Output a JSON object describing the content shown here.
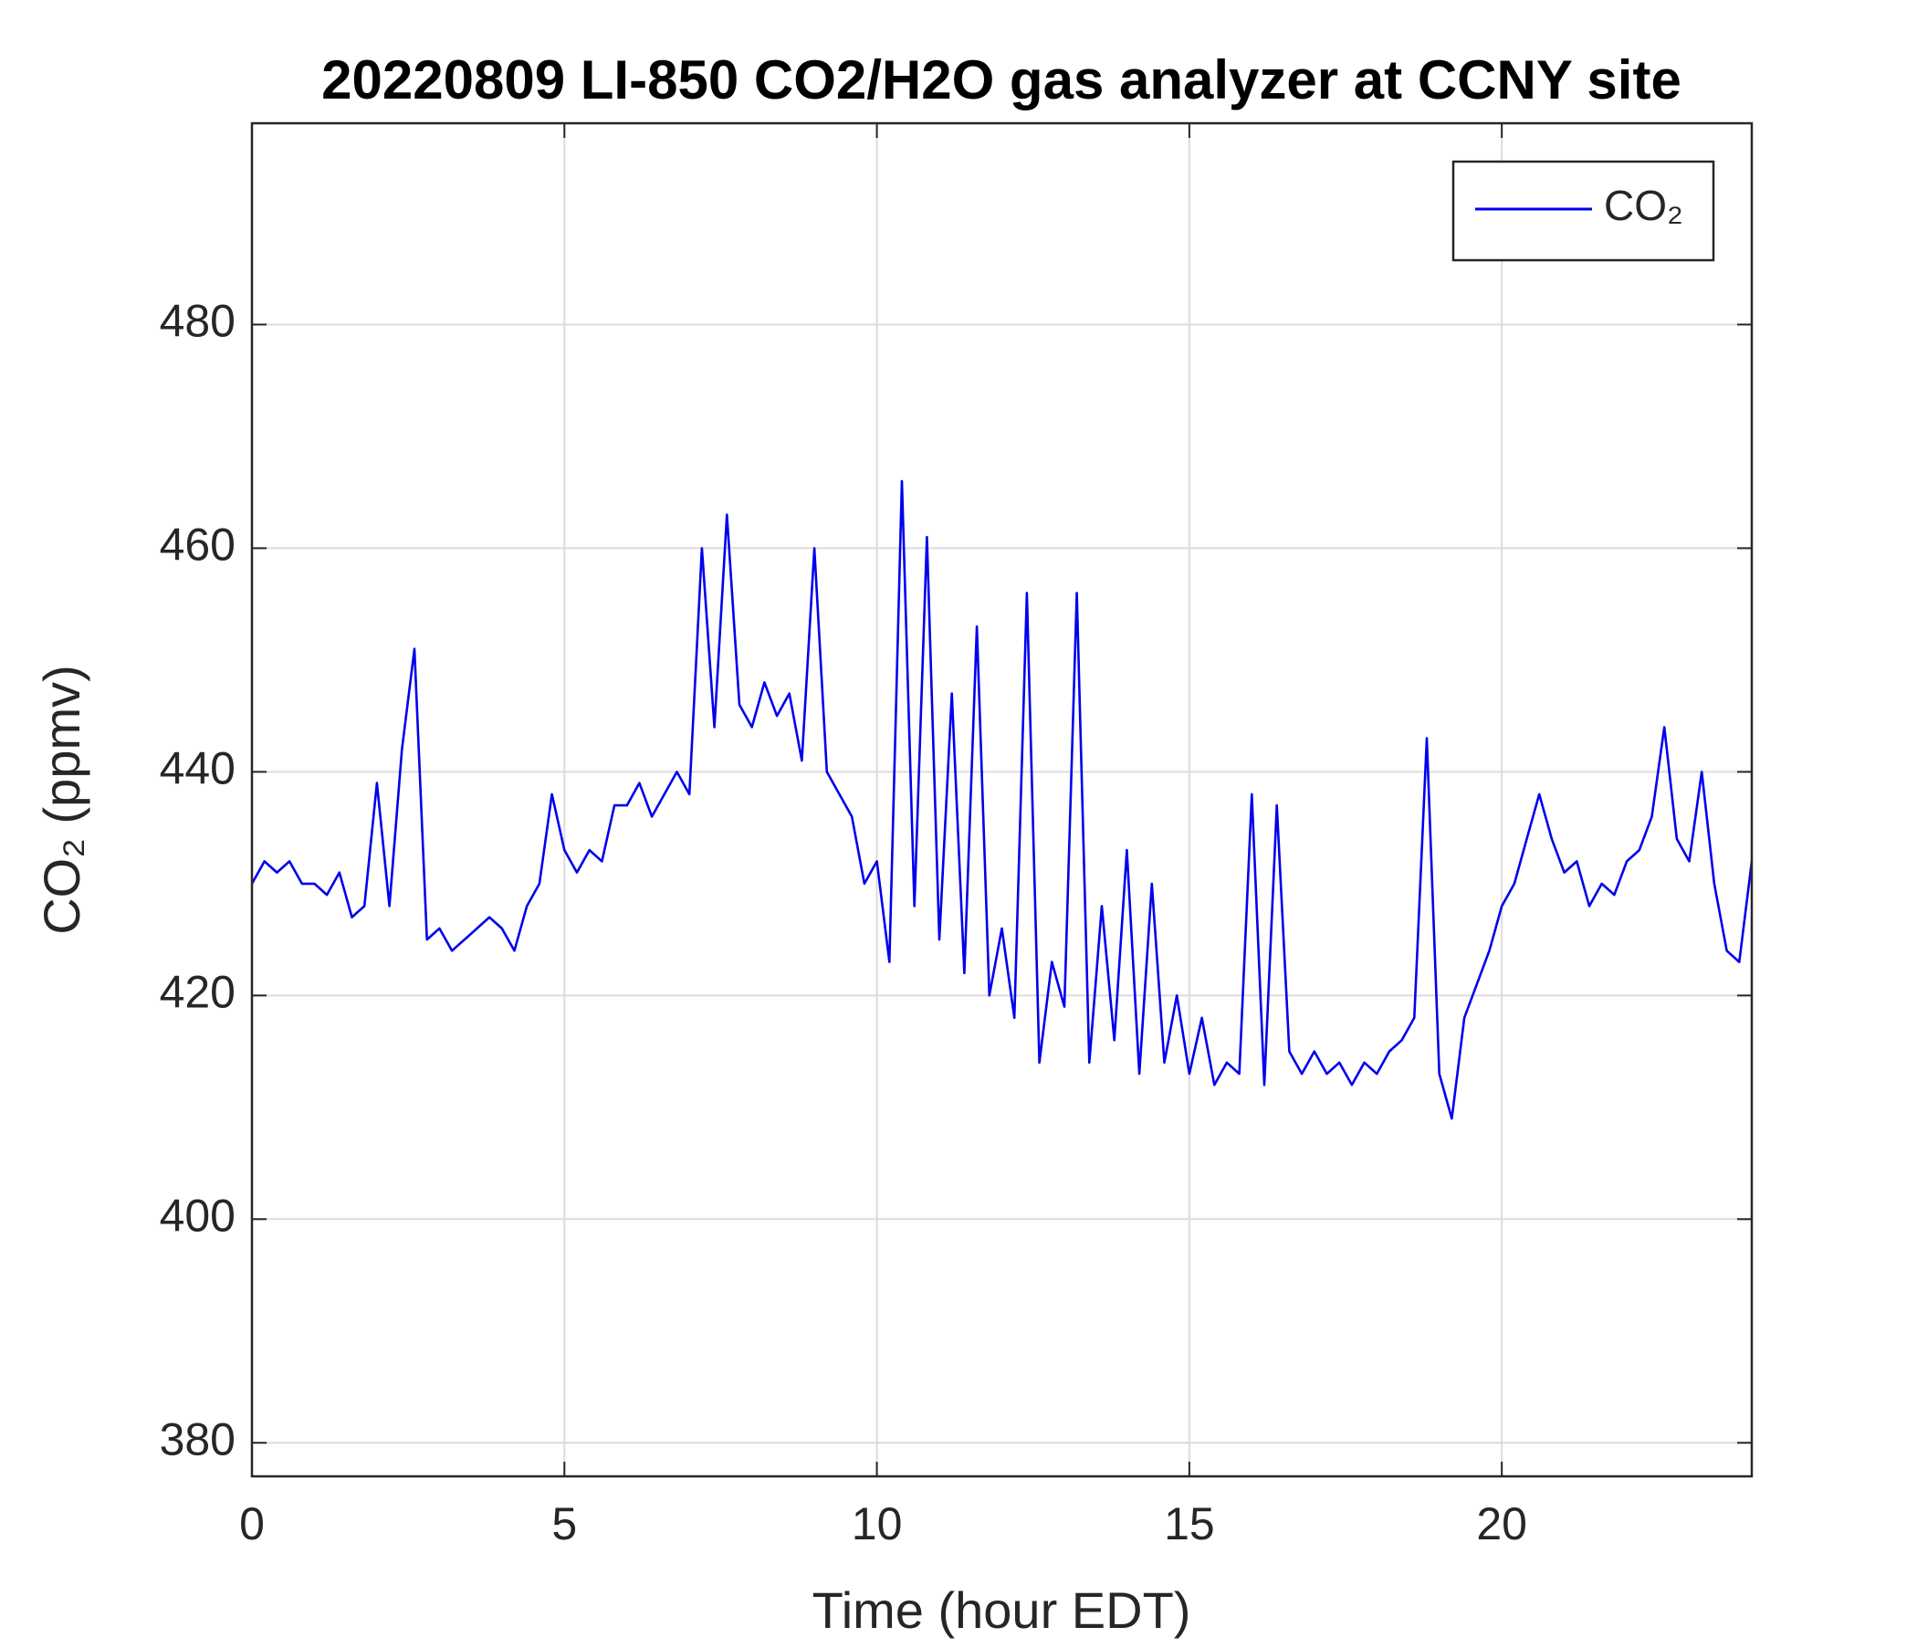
{
  "chart_data": {
    "type": "line",
    "title": "20220809 LI-850 CO2/H2O gas analyzer at CCNY site",
    "xlabel": "Time (hour EDT)",
    "ylabel": "CO₂ (ppmv)",
    "xlim": [
      0,
      24
    ],
    "ylim": [
      377,
      498
    ],
    "xticks": [
      0,
      5,
      10,
      15,
      20
    ],
    "yticks": [
      380,
      400,
      420,
      440,
      460,
      480
    ],
    "grid": true,
    "legend": "upper right",
    "x": [
      0,
      0.2,
      0.4,
      0.6,
      0.8,
      1,
      1.2,
      1.4,
      1.6,
      1.8,
      2,
      2.2,
      2.4,
      2.6,
      2.8,
      3,
      3.2,
      3.4,
      3.6,
      3.8,
      4,
      4.2,
      4.4,
      4.6,
      4.8,
      5,
      5.2,
      5.4,
      5.6,
      5.8,
      6,
      6.2,
      6.4,
      6.6,
      6.8,
      7,
      7.2,
      7.4,
      7.6,
      7.8,
      8,
      8.2,
      8.4,
      8.6,
      8.8,
      9,
      9.2,
      9.4,
      9.6,
      9.8,
      10,
      10.2,
      10.4,
      10.6,
      10.8,
      11,
      11.2,
      11.4,
      11.6,
      11.8,
      12,
      12.2,
      12.4,
      12.6,
      12.8,
      13,
      13.2,
      13.4,
      13.6,
      13.8,
      14,
      14.2,
      14.4,
      14.6,
      14.8,
      15,
      15.2,
      15.4,
      15.6,
      15.8,
      16,
      16.2,
      16.4,
      16.6,
      16.8,
      17,
      17.2,
      17.4,
      17.6,
      17.8,
      18,
      18.2,
      18.4,
      18.6,
      18.8,
      19,
      19.2,
      19.4,
      19.6,
      19.8,
      20,
      20.2,
      20.4,
      20.6,
      20.8,
      21,
      21.2,
      21.4,
      21.6,
      21.8,
      22,
      22.2,
      22.4,
      22.6,
      22.8,
      23,
      23.2,
      23.4,
      23.6,
      23.8,
      24
    ],
    "series": [
      {
        "name": "CO₂",
        "color": "#0000ee",
        "values": [
          430,
          432,
          431,
          432,
          430,
          430,
          429,
          431,
          427,
          428,
          439,
          428,
          442,
          451,
          425,
          426,
          424,
          425,
          426,
          427,
          426,
          424,
          428,
          430,
          438,
          433,
          431,
          433,
          432,
          437,
          437,
          439,
          436,
          438,
          440,
          438,
          460,
          444,
          463,
          446,
          444,
          448,
          445,
          447,
          441,
          460,
          440,
          438,
          436,
          430,
          432,
          423,
          466,
          428,
          461,
          425,
          447,
          422,
          453,
          420,
          426,
          418,
          456,
          414,
          423,
          419,
          456,
          414,
          428,
          416,
          433,
          413,
          430,
          414,
          420,
          413,
          418,
          412,
          414,
          413,
          438,
          412,
          437,
          415,
          413,
          415,
          413,
          414,
          412,
          414,
          413,
          415,
          416,
          418,
          443,
          413,
          409,
          418,
          421,
          424,
          428,
          430,
          434,
          438,
          434,
          431,
          432,
          428,
          430,
          429,
          432,
          433,
          436,
          444,
          434,
          432,
          440,
          430,
          424,
          423,
          432
        ]
      }
    ]
  }
}
